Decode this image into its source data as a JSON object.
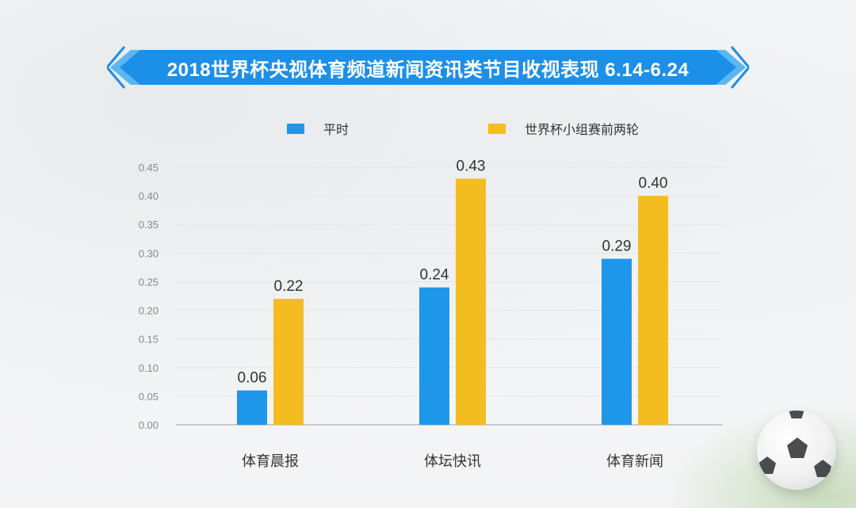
{
  "title": "2018世界杯央视体育频道新闻资讯类节目收视表现 6.14-6.24",
  "colors": {
    "banner": "#1c8fe8",
    "series_normal": "#1e96ea",
    "series_worldcup": "#f3bd22",
    "axis_text": "#888888",
    "label_text": "#333333"
  },
  "legend": {
    "normal_label": "平时",
    "worldcup_label": "世界杯小组赛前两轮"
  },
  "chart_data": {
    "type": "bar",
    "categories": [
      "体育晨报",
      "体坛快讯",
      "体育新闻"
    ],
    "series": [
      {
        "name": "平时",
        "values": [
          0.06,
          0.24,
          0.29
        ],
        "labels": [
          "0.06",
          "0.24",
          "0.29"
        ]
      },
      {
        "name": "世界杯小组赛前两轮",
        "values": [
          0.22,
          0.43,
          0.4
        ],
        "labels": [
          "0.22",
          "0.43",
          "0.40"
        ]
      }
    ],
    "ylim": [
      0,
      0.45
    ],
    "yticks": [
      "0.00",
      "0.05",
      "0.10",
      "0.15",
      "0.20",
      "0.25",
      "0.30",
      "0.35",
      "0.40",
      "0.45"
    ],
    "grid": true,
    "legend_position": "top-center"
  }
}
